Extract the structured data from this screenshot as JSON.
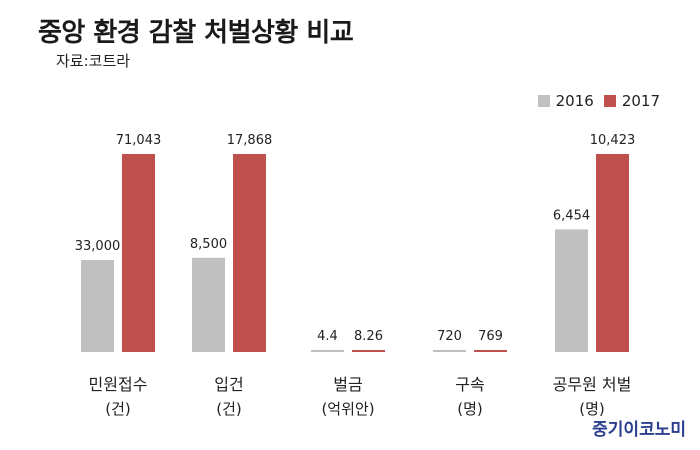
{
  "chart_data": {
    "type": "bar",
    "title": "중앙 환경 감찰 처벌상황 비교",
    "subtitle": "자료:코트라",
    "legend_position": "top-right",
    "categories": [
      "민원접수",
      "입건",
      "벌금",
      "구속",
      "공무원 처벌"
    ],
    "category_units": [
      "(건)",
      "(건)",
      "(억위안)",
      "(명)",
      "(명)"
    ],
    "series": [
      {
        "name": "2016",
        "color": "#c0c0c0",
        "values": [
          33000,
          8500,
          4.4,
          720,
          6454
        ],
        "labels": [
          "33,000",
          "8,500",
          "4.4",
          "720",
          "6,454"
        ]
      },
      {
        "name": "2017",
        "color": "#c0504d",
        "values": [
          71043,
          17868,
          8.26,
          769,
          10423
        ],
        "labels": [
          "71,043",
          "17,868",
          "8.26",
          "769",
          "10,423"
        ]
      }
    ]
  },
  "watermark": "중기이코노미"
}
